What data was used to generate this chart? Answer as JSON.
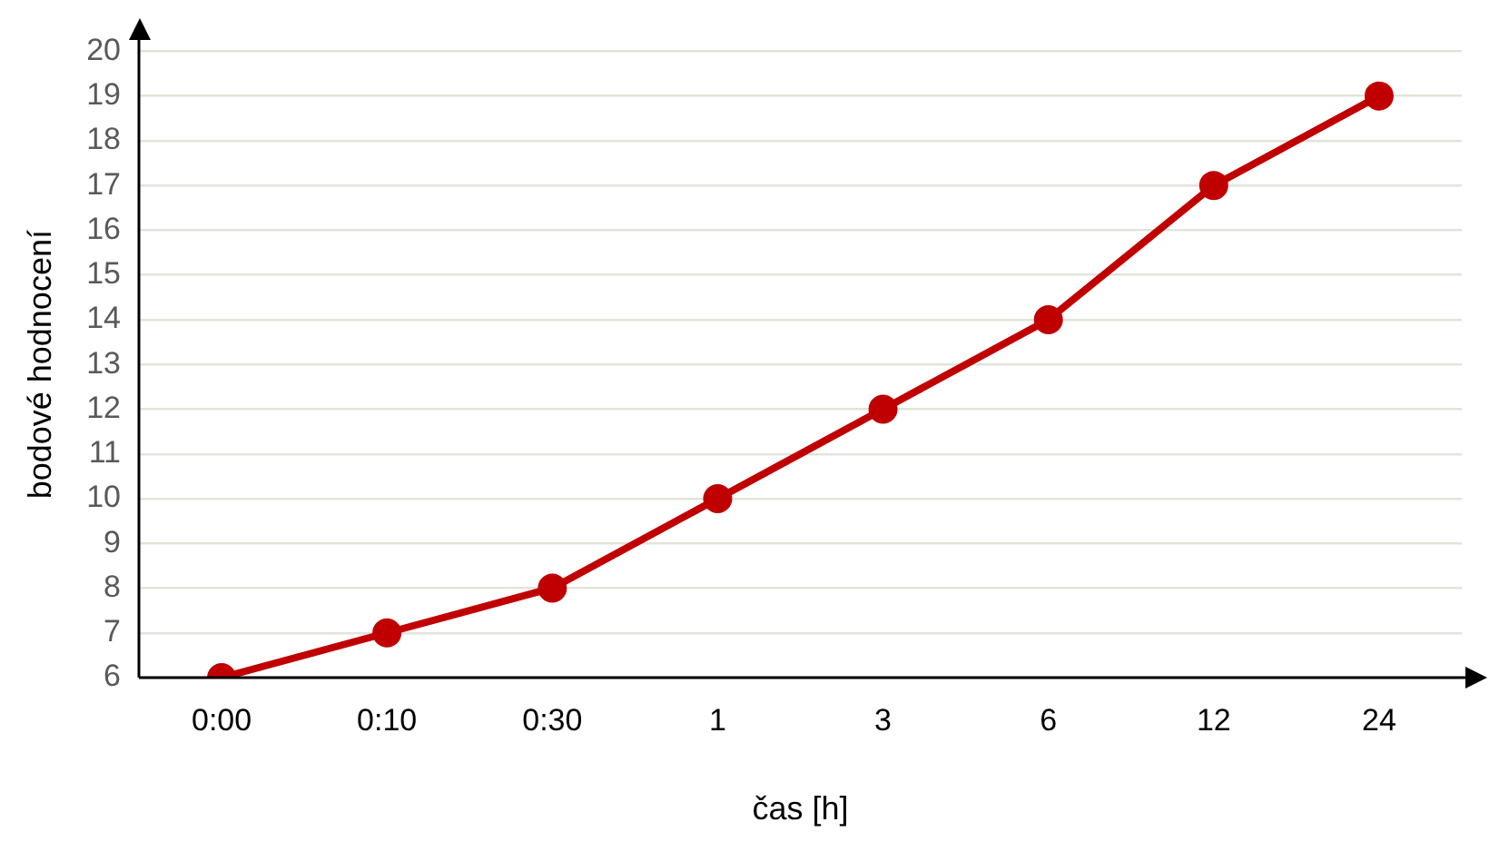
{
  "chart_data": {
    "type": "line",
    "xlabel": "čas [h]",
    "ylabel": "bodové hodnocení",
    "categories": [
      "0:00",
      "0:10",
      "0:30",
      "1",
      "3",
      "6",
      "12",
      "24"
    ],
    "series": [
      {
        "color": "#c00000",
        "values": [
          6,
          7,
          8,
          10,
          12,
          14,
          17,
          19
        ]
      }
    ],
    "ylim": [
      6,
      20
    ],
    "yticks": [
      6,
      7,
      8,
      9,
      10,
      11,
      12,
      13,
      14,
      15,
      16,
      17,
      18,
      19,
      20
    ],
    "grid": "y",
    "legend": false,
    "marker": "circle",
    "line_style": "solid"
  }
}
